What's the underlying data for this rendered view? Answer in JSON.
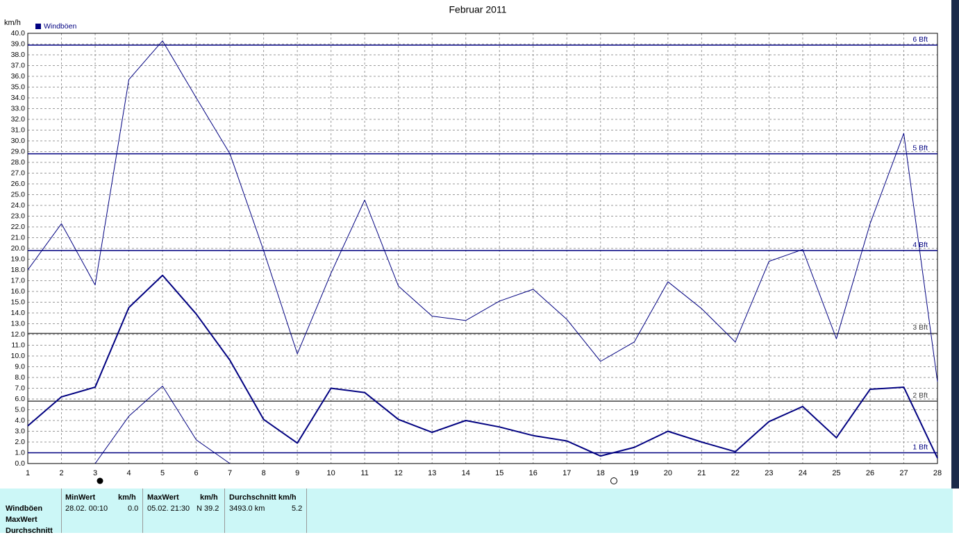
{
  "chart_data": {
    "type": "line",
    "title": "Februar 2011",
    "y_unit": "km/h",
    "x": [
      1,
      2,
      3,
      4,
      5,
      6,
      7,
      8,
      9,
      10,
      11,
      12,
      13,
      14,
      15,
      16,
      17,
      18,
      19,
      20,
      21,
      22,
      23,
      24,
      25,
      26,
      27,
      28
    ],
    "xlim": [
      1,
      28
    ],
    "xticks": [
      1,
      2,
      3,
      4,
      5,
      6,
      7,
      8,
      9,
      10,
      11,
      12,
      13,
      14,
      15,
      16,
      17,
      18,
      19,
      20,
      21,
      22,
      23,
      24,
      25,
      26,
      27,
      28
    ],
    "ylim": [
      0,
      40
    ],
    "yticks": [
      {
        "value": 0,
        "label": "0.0"
      },
      {
        "value": 1,
        "label": "1.0"
      },
      {
        "value": 2,
        "label": "2.0"
      },
      {
        "value": 3,
        "label": "3.0"
      },
      {
        "value": 4,
        "label": "4.0"
      },
      {
        "value": 5,
        "label": "5.0"
      },
      {
        "value": 6,
        "label": "6.0"
      },
      {
        "value": 7,
        "label": "7.0"
      },
      {
        "value": 8,
        "label": "8.0"
      },
      {
        "value": 9,
        "label": "9.0"
      },
      {
        "value": 10,
        "label": "10.0"
      },
      {
        "value": 11,
        "label": "11.0"
      },
      {
        "value": 12,
        "label": "12.0"
      },
      {
        "value": 13,
        "label": "13.0"
      },
      {
        "value": 14,
        "label": "14.0"
      },
      {
        "value": 15,
        "label": "15.0"
      },
      {
        "value": 16,
        "label": "16.0"
      },
      {
        "value": 17,
        "label": "17.0"
      },
      {
        "value": 18,
        "label": "18.0"
      },
      {
        "value": 19,
        "label": "19.0"
      },
      {
        "value": 20,
        "label": "20.0"
      },
      {
        "value": 21,
        "label": "21.0"
      },
      {
        "value": 22,
        "label": "22.0"
      },
      {
        "value": 23,
        "label": "23.0"
      },
      {
        "value": 24,
        "label": "24.0"
      },
      {
        "value": 25,
        "label": "25.0"
      },
      {
        "value": 26,
        "label": "26.0"
      },
      {
        "value": 27,
        "label": "27.0"
      },
      {
        "value": 28,
        "label": "28.0"
      },
      {
        "value": 29,
        "label": "29.0"
      },
      {
        "value": 30,
        "label": "30.0"
      },
      {
        "value": 31,
        "label": "31.0"
      },
      {
        "value": 32,
        "label": "32.0"
      },
      {
        "value": 33,
        "label": "33.0"
      },
      {
        "value": 34,
        "label": "34.0"
      },
      {
        "value": 35,
        "label": "35.0"
      },
      {
        "value": 36,
        "label": "36.0"
      },
      {
        "value": 37,
        "label": "37.0"
      },
      {
        "value": 38,
        "label": "38.0"
      },
      {
        "value": 39,
        "label": "39.0"
      },
      {
        "value": 40,
        "label": "40.0"
      }
    ],
    "grid": true,
    "series": [
      {
        "name": "Windböen",
        "color": "#000080",
        "width": 2,
        "values": [
          3.5,
          6.2,
          7.1,
          14.5,
          17.5,
          13.9,
          9.6,
          4.1,
          1.9,
          7.0,
          6.6,
          4.1,
          2.9,
          4.0,
          3.4,
          2.6,
          2.1,
          0.7,
          1.5,
          3.0,
          2.0,
          1.1,
          3.9,
          5.3,
          2.4,
          6.9,
          7.1,
          0.5
        ]
      },
      {
        "color": "#000080",
        "width": 1,
        "values": [
          18.0,
          22.3,
          16.6,
          35.7,
          39.3,
          34.0,
          28.8,
          19.8,
          10.2,
          17.7,
          24.5,
          16.5,
          13.7,
          13.3,
          15.1,
          16.2,
          13.4,
          9.5,
          11.3,
          16.9,
          14.4,
          11.3,
          18.8,
          19.9,
          11.6,
          22.3,
          30.7,
          7.6
        ]
      },
      {
        "color": "#000080",
        "width": 1,
        "values": [
          null,
          null,
          0.0,
          4.4,
          7.2,
          2.2,
          0.0,
          null,
          null,
          null,
          null,
          null,
          null,
          null,
          null,
          null,
          null,
          null,
          null,
          null,
          null,
          null,
          null,
          null,
          null,
          null,
          null,
          null
        ]
      }
    ],
    "reference_lines": [
      {
        "value": 1.0,
        "label": "1 Bft",
        "color": "#000080"
      },
      {
        "value": 5.8,
        "label": "2 Bft",
        "color": "#404040"
      },
      {
        "value": 12.1,
        "label": "3 Bft",
        "color": "#404040"
      },
      {
        "value": 19.8,
        "label": "4 Bft",
        "color": "#000080"
      },
      {
        "value": 28.8,
        "label": "5 Bft",
        "color": "#000080"
      },
      {
        "value": 38.9,
        "label": "6 Bft",
        "color": "#000080"
      }
    ]
  },
  "stats": {
    "row_labels": [
      "Windböen",
      "MaxWert",
      "Durchschnitt"
    ],
    "headers": [
      "MinWert",
      "km/h",
      "MaxWert",
      "km/h",
      "Durchschnitt km/h"
    ],
    "values": [
      "28.02.  00:10",
      "0.0",
      "05.02.  21:30",
      "N 39.2",
      "3493.0 km",
      "5.2"
    ]
  }
}
